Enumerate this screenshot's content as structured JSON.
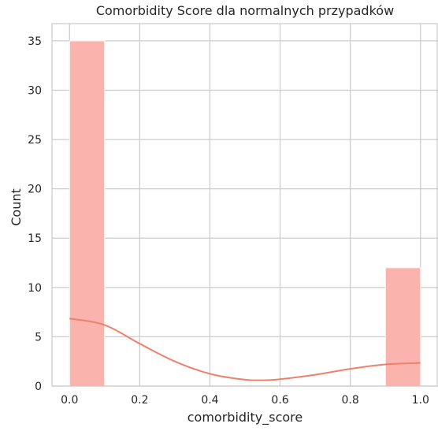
{
  "chart_data": {
    "type": "bar",
    "subtype": "histogram-with-kde",
    "title": "Comorbidity Score dla normalnych przypadków",
    "xlabel": "comorbidity_score",
    "ylabel": "Count",
    "xlim": [
      -0.05,
      1.05
    ],
    "ylim": [
      0,
      36.75
    ],
    "xticks": [
      "0.0",
      "0.2",
      "0.4",
      "0.6",
      "0.8",
      "1.0"
    ],
    "yticks": [
      "0",
      "5",
      "10",
      "15",
      "20",
      "25",
      "30",
      "35"
    ],
    "grid": true,
    "bins": [
      {
        "x0": 0.0,
        "x1": 0.1,
        "count": 35
      },
      {
        "x0": 0.1,
        "x1": 0.2,
        "count": 0
      },
      {
        "x0": 0.2,
        "x1": 0.3,
        "count": 0
      },
      {
        "x0": 0.3,
        "x1": 0.4,
        "count": 0
      },
      {
        "x0": 0.4,
        "x1": 0.5,
        "count": 0
      },
      {
        "x0": 0.5,
        "x1": 0.6,
        "count": 0
      },
      {
        "x0": 0.6,
        "x1": 0.7,
        "count": 0
      },
      {
        "x0": 0.7,
        "x1": 0.8,
        "count": 0
      },
      {
        "x0": 0.8,
        "x1": 0.9,
        "count": 0
      },
      {
        "x0": 0.9,
        "x1": 1.0,
        "count": 12
      }
    ],
    "kde": {
      "x": [
        0.0,
        0.1,
        0.2,
        0.3,
        0.4,
        0.5,
        0.56,
        0.6,
        0.7,
        0.8,
        0.9,
        1.0
      ],
      "y": [
        6.85,
        6.2,
        4.3,
        2.5,
        1.25,
        0.65,
        0.6,
        0.7,
        1.15,
        1.75,
        2.2,
        2.35
      ]
    },
    "colors": {
      "bar_fill": "#fbb3ad",
      "bar_edge": "#ffffff",
      "kde_line": "#f07f6c",
      "grid": "#cccccc",
      "spine": "#cccccc",
      "text": "#262626"
    }
  }
}
